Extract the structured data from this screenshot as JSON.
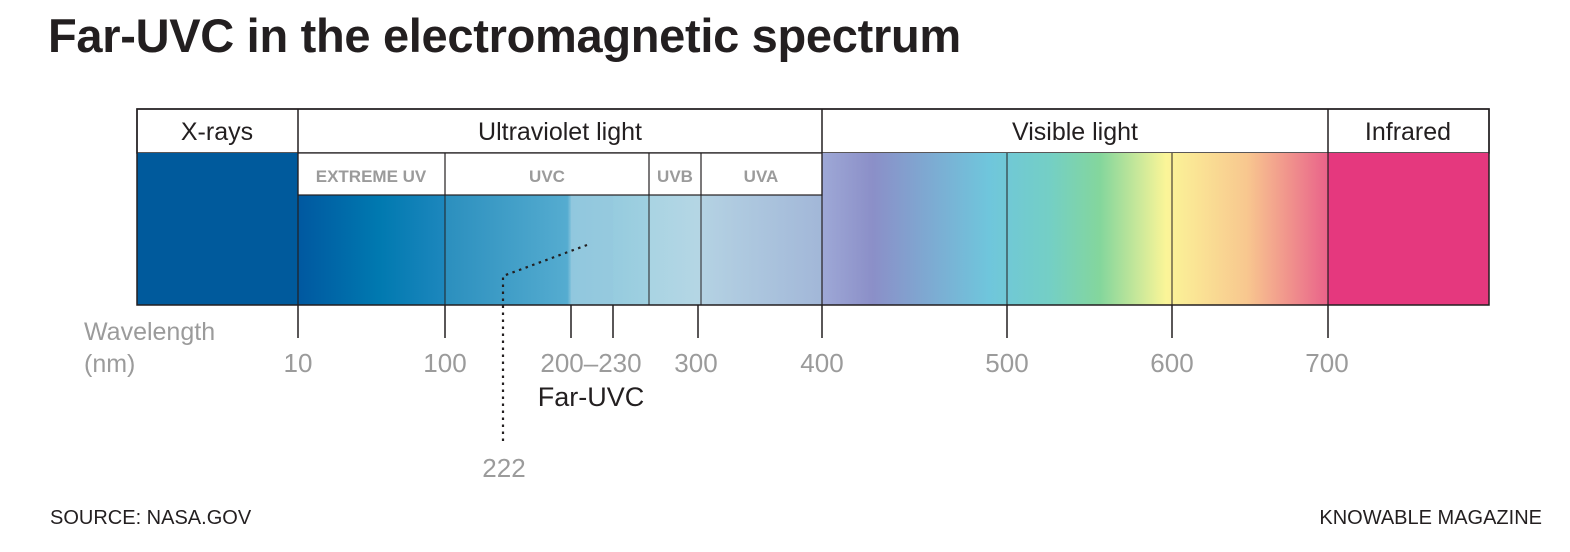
{
  "title": "Far-UVC in the electromagnetic spectrum",
  "source": "SOURCE: NASA.GOV",
  "credit": "KNOWABLE MAGAZINE",
  "categories": {
    "xrays": "X-rays",
    "ultraviolet": "Ultraviolet light",
    "visible": "Visible light",
    "infrared": "Infrared"
  },
  "uv_bands": {
    "extreme": "EXTREME UV",
    "uvc": "UVC",
    "uvb": "UVB",
    "uva": "UVA"
  },
  "axis": {
    "label_line1": "Wavelength",
    "label_line2": "(nm)",
    "ticks": [
      "10",
      "100",
      "200–230",
      "300",
      "400",
      "500",
      "600",
      "700"
    ]
  },
  "far_uvc": {
    "range_label": "Far-UVC",
    "wavelength": "222"
  },
  "colors": {
    "xray": "#005a9c",
    "infrared": "#e5387e",
    "uv_start": "#0058a0",
    "uv_mid": "#2a8fc0",
    "visible_violet": "#8d90c8",
    "visible_cyan": "#6ec5dc",
    "visible_green": "#84d59a",
    "visible_yellow": "#fbf497",
    "visible_red": "#e96a88"
  }
}
